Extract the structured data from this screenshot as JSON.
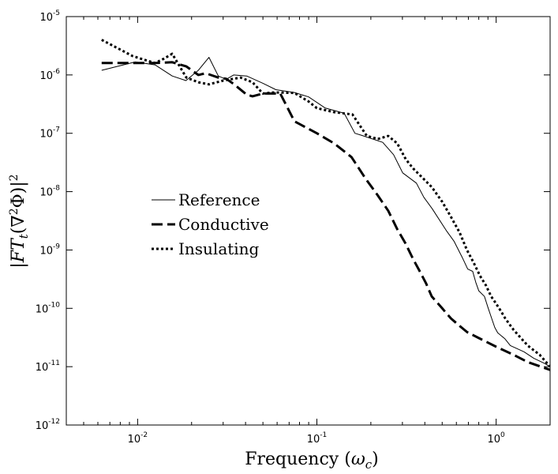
{
  "chart_data": {
    "type": "line",
    "title": "",
    "xlabel": "Frequency (ωc)",
    "ylabel": "|FTt(∇2Φ)|2",
    "xscale": "log",
    "yscale": "log",
    "xlim": [
      0.004,
      2.0
    ],
    "ylim": [
      1e-12,
      1e-05
    ],
    "x_ticks": [
      {
        "value": 0.01,
        "base": "10",
        "exp": "-2"
      },
      {
        "value": 0.1,
        "base": "10",
        "exp": "-1"
      },
      {
        "value": 1,
        "base": "10",
        "exp": "0"
      }
    ],
    "y_ticks": [
      {
        "value": 1e-12,
        "base": "10",
        "exp": "-12"
      },
      {
        "value": 1e-11,
        "base": "10",
        "exp": "-11"
      },
      {
        "value": 1e-10,
        "base": "10",
        "exp": "-10"
      },
      {
        "value": 1e-09,
        "base": "10",
        "exp": "-9"
      },
      {
        "value": 1e-08,
        "base": "10",
        "exp": "-8"
      },
      {
        "value": 1e-07,
        "base": "10",
        "exp": "-7"
      },
      {
        "value": 1e-06,
        "base": "10",
        "exp": "-6"
      },
      {
        "value": 1e-05,
        "base": "10",
        "exp": "-5"
      }
    ],
    "grid": false,
    "legend": {
      "position": "center-left"
    },
    "series": [
      {
        "name": "Reference",
        "style": "solid",
        "color": "#000000",
        "x": [
          0.0063,
          0.0097,
          0.0125,
          0.0156,
          0.0186,
          0.0218,
          0.025,
          0.0282,
          0.0312,
          0.0343,
          0.0406,
          0.05,
          0.059,
          0.075,
          0.09,
          0.111,
          0.142,
          0.163,
          0.178,
          0.233,
          0.268,
          0.301,
          0.359,
          0.395,
          0.44,
          0.53,
          0.583,
          0.648,
          0.694,
          0.74,
          0.77,
          0.8,
          0.86,
          0.901,
          0.949,
          0.983,
          1.02,
          1.12,
          1.2,
          1.43,
          1.62,
          1.86,
          2.0
        ],
        "y": [
          1.2e-06,
          1.67e-06,
          1.49e-06,
          9.6e-07,
          8e-07,
          1.2e-06,
          2e-06,
          9.6e-07,
          8.4e-07,
          1e-06,
          9.6e-07,
          7.2e-07,
          5.6e-07,
          5e-07,
          4.2e-07,
          2.72e-07,
          2.2e-07,
          1e-07,
          9.2e-08,
          7e-08,
          4.3e-08,
          2.1e-08,
          1.4e-08,
          8e-09,
          5.1e-09,
          2.1e-09,
          1.4e-09,
          7.4e-10,
          4.7e-10,
          4.3e-10,
          2.8e-10,
          2e-10,
          1.6e-10,
          1.03e-10,
          6.4e-11,
          4.7e-11,
          3.8e-11,
          3e-11,
          2.3e-11,
          1.8e-11,
          1.4e-11,
          1.14e-11,
          1e-11
        ]
      },
      {
        "name": "Conductive",
        "style": "dashed",
        "color": "#000000",
        "x": [
          0.0063,
          0.0125,
          0.0156,
          0.0187,
          0.0218,
          0.024,
          0.0282,
          0.0312,
          0.0343,
          0.0406,
          0.0437,
          0.05,
          0.0625,
          0.075,
          0.1,
          0.125,
          0.156,
          0.187,
          0.218,
          0.25,
          0.28,
          0.312,
          0.344,
          0.375,
          0.406,
          0.437,
          0.5,
          0.56,
          0.625,
          0.69,
          0.8,
          1.0,
          1.25,
          1.5,
          2.0
        ],
        "y": [
          1.6e-06,
          1.6e-06,
          1.65e-06,
          1.4e-06,
          1e-06,
          1.07e-06,
          9e-07,
          8.6e-07,
          7e-07,
          4.6e-07,
          4.3e-07,
          4.8e-07,
          4.8e-07,
          1.6e-07,
          1e-07,
          6.7e-08,
          3.9e-08,
          1.67e-08,
          8.7e-09,
          4.7e-09,
          2.3e-09,
          1.3e-09,
          7e-10,
          4.3e-10,
          2.7e-10,
          1.6e-10,
          1e-10,
          6.7e-11,
          5e-11,
          3.9e-11,
          3.1e-11,
          2.2e-11,
          1.6e-11,
          1.2e-11,
          8.8e-12
        ]
      },
      {
        "name": "Insulating",
        "style": "dotted",
        "color": "#000000",
        "x": [
          0.0063,
          0.0094,
          0.0125,
          0.014,
          0.0156,
          0.0187,
          0.0218,
          0.025,
          0.03,
          0.0375,
          0.0437,
          0.05,
          0.0562,
          0.0625,
          0.075,
          0.09,
          0.1,
          0.125,
          0.158,
          0.19,
          0.219,
          0.25,
          0.281,
          0.313,
          0.344,
          0.437,
          0.5,
          0.562,
          0.625,
          0.687,
          0.75,
          0.813,
          0.875,
          0.938,
          1.0,
          1.062,
          1.125,
          1.25,
          1.375,
          1.5,
          1.75,
          2.0
        ],
        "y": [
          4e-06,
          2.1e-06,
          1.6e-06,
          1.9e-06,
          2.3e-06,
          9e-07,
          7.5e-07,
          6.9e-07,
          8e-07,
          9e-07,
          7.5e-07,
          4.8e-07,
          5e-07,
          5e-07,
          4.9e-07,
          3.5e-07,
          2.7e-07,
          2.3e-07,
          2.1e-07,
          9e-08,
          8e-08,
          9e-08,
          6.7e-08,
          3.6e-08,
          2.5e-08,
          1.2e-08,
          6.7e-09,
          3.6e-09,
          2e-09,
          1e-09,
          6e-10,
          3.6e-10,
          2.5e-10,
          1.6e-10,
          1.2e-10,
          9e-11,
          6.7e-11,
          4.3e-11,
          3.1e-11,
          2.3e-11,
          1.6e-11,
          1e-11
        ]
      }
    ]
  }
}
